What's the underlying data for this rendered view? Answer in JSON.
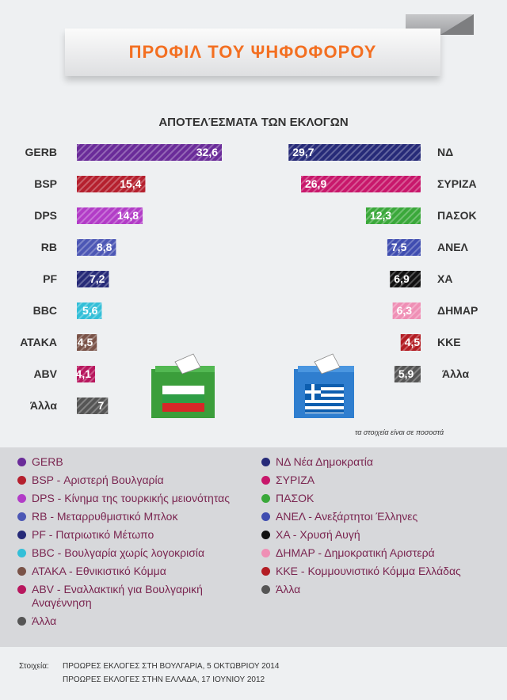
{
  "banner": {
    "title": "ΠΡΟΦΙΛ ΤΟΥ ΨΗΦΟΦΟΡΟΥ"
  },
  "chart_subtitle": "ΑΠΟΤΕΛΈΣΜΑΤΑ ΤΩΝ ΕΚΛΟΓΩΝ",
  "note": "τα στοιχεία είναι σε ποσοστά",
  "chart_data": [
    {
      "type": "bar",
      "categories": [
        "GERB",
        "BSP",
        "DPS",
        "RB",
        "PF",
        "BBC",
        "ΑΤΑΚΑ",
        "ABV",
        "Άλλα"
      ],
      "value_labels": [
        "32,6",
        "15,4",
        "14,8",
        "8,8",
        "7,2",
        "5,6",
        "4,5",
        "4,1",
        "7"
      ],
      "values": [
        32.6,
        15.4,
        14.8,
        8.8,
        7.2,
        5.6,
        4.5,
        4.1,
        7
      ],
      "colors": [
        "#6a2b99",
        "#b5202e",
        "#b23cc7",
        "#4c57b5",
        "#262a78",
        "#33bfd8",
        "#7a5348",
        "#b8175e",
        "#555555"
      ],
      "orientation": "horizontal-right"
    },
    {
      "type": "bar",
      "categories": [
        "ΝΔ",
        "ΣΥΡΙΖΑ",
        "ΠΑΣΟΚ",
        "ΑΝΕΛ",
        "ΧΑ",
        "ΔΗΜΑΡ",
        "ΚΚΕ",
        "Άλλα"
      ],
      "value_labels": [
        "29,7",
        "26,9",
        "12,3",
        "7,5",
        "6,9",
        "6,3",
        "4,5",
        "5,9"
      ],
      "values": [
        29.7,
        26.9,
        12.3,
        7.5,
        6.9,
        6.3,
        4.5,
        5.9
      ],
      "colors": [
        "#262a78",
        "#c8176b",
        "#3aa83a",
        "#3f4db0",
        "#111111",
        "#ef8fb5",
        "#b31d24",
        "#555555"
      ],
      "orientation": "horizontal-left"
    }
  ],
  "legend_left": [
    {
      "label": "GERB",
      "color": "#6a2b99"
    },
    {
      "label": "BSP - Αριστερή Βουλγαρία",
      "color": "#b5202e"
    },
    {
      "label": "DPS - Κίνημα της τουρκικής μειονότητας",
      "color": "#b23cc7"
    },
    {
      "label": "RB - Μεταρρυθμιστικό Μπλοκ",
      "color": "#4c57b5"
    },
    {
      "label": "PF - Πατριωτικό Μέτωπο",
      "color": "#262a78"
    },
    {
      "label": " BBC - Βουλγαρία χωρίς λογοκρισία",
      "color": "#33bfd8"
    },
    {
      "label": "ΑΤΑΚΑ - Εθνικιστικό Κόμμα",
      "color": "#7a5348"
    },
    {
      "label": "ABV - Εναλλακτική για Βουλγαρική Αναγέννηση",
      "color": "#b8175e"
    },
    {
      "label": " Άλλα",
      "color": "#555555"
    }
  ],
  "legend_right": [
    {
      "label": "ΝΔ Νέα Δημοκρατία",
      "color": "#262a78"
    },
    {
      "label": "ΣΥΡΙΖΑ",
      "color": "#c8176b"
    },
    {
      "label": "ΠΑΣΟΚ",
      "color": "#3aa83a"
    },
    {
      "label": "ΑΝΕΛ - Ανεξάρτητοι Έλληνες",
      "color": "#3f4db0"
    },
    {
      "label": "ΧΑ - Χρυσή Αυγή",
      "color": "#111111"
    },
    {
      "label": "ΔΗΜΑΡ - Δημοκρατική Αριστερά",
      "color": "#ef8fb5"
    },
    {
      "label": "ΚΚΕ - Κομμουνιστικό Κόμμα Ελλάδας",
      "color": "#b31d24"
    },
    {
      "label": " Άλλα",
      "color": "#555555"
    }
  ],
  "footer": {
    "label": "Στοιχεία:",
    "line1": "ΠΡΟΩΡΕΣ ΕΚΛΟΓΕΣ ΣΤΗ ΒΟΥΛΓΑΡΙΑ, 5 ΟΚΤΩΒΡΙΟΥ 2014",
    "line2": "ΠΡΟΩΡΕΣ ΕΚΛΟΓΕΣ ΣΤΗΝ ΕΛΛΑΔΑ, 17 ΙΟΥΝΙΟΥ 2012"
  }
}
